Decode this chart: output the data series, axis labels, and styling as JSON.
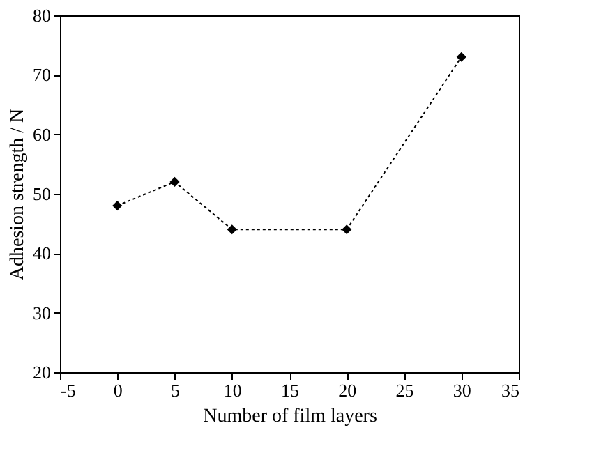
{
  "chart_data": {
    "type": "line",
    "xlabel": "Number of film layers",
    "ylabel": "Adhesion strength / N",
    "x": [
      0,
      5,
      10,
      20,
      30
    ],
    "series": [
      {
        "color": "#000000",
        "values": [
          48,
          52,
          44,
          44,
          73
        ]
      }
    ],
    "xlim": [
      -5,
      35
    ],
    "xticks": [
      -5,
      0,
      5,
      10,
      15,
      20,
      25,
      30,
      35
    ],
    "ylim": [
      20,
      80
    ],
    "yticks": [
      20,
      30,
      40,
      50,
      60,
      70,
      80
    ],
    "grid": false,
    "marker": "diamond",
    "line_style": "dotted"
  }
}
